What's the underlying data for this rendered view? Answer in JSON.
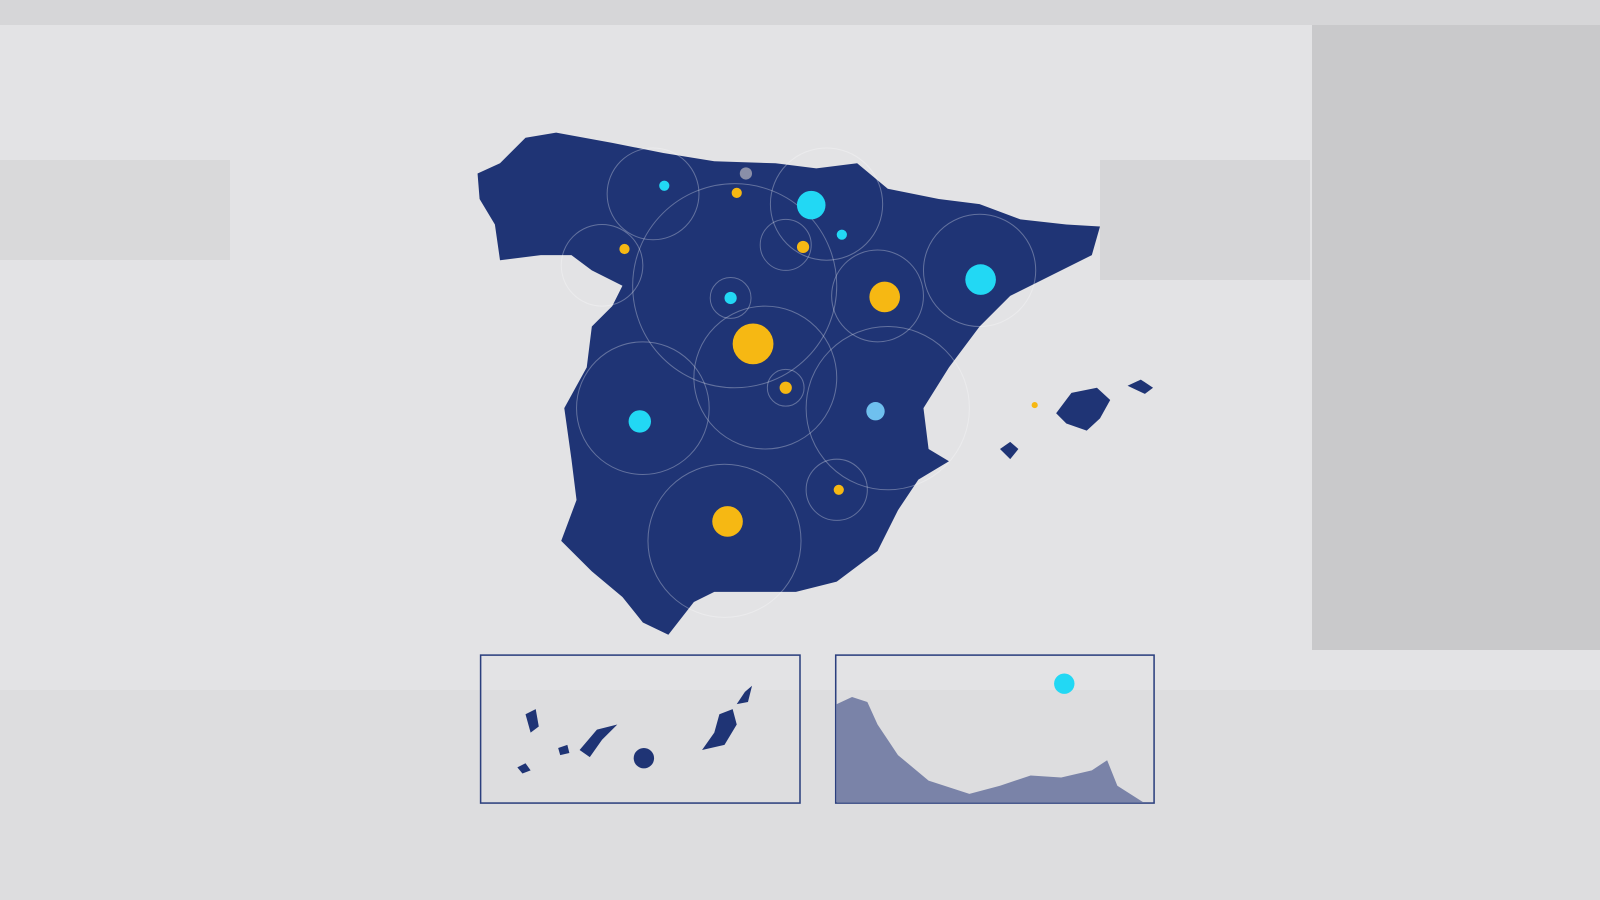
{
  "map": {
    "colors": {
      "background": "#e3e3e5",
      "land": "#1f3475",
      "inset_border": "#2b3f7e",
      "inset_land_secondary": "#7a83a8",
      "ring": "#ffffff",
      "marker_yellow": "#f6b813",
      "marker_cyan": "#22d8f4",
      "marker_lightblue": "#6fc0ee",
      "marker_grey": "#8a8fa8"
    },
    "insets": [
      {
        "name": "canary-islands"
      },
      {
        "name": "ceuta-melilla-coast"
      }
    ],
    "marker_types": [
      "yellow",
      "cyan",
      "lightblue",
      "grey"
    ]
  }
}
